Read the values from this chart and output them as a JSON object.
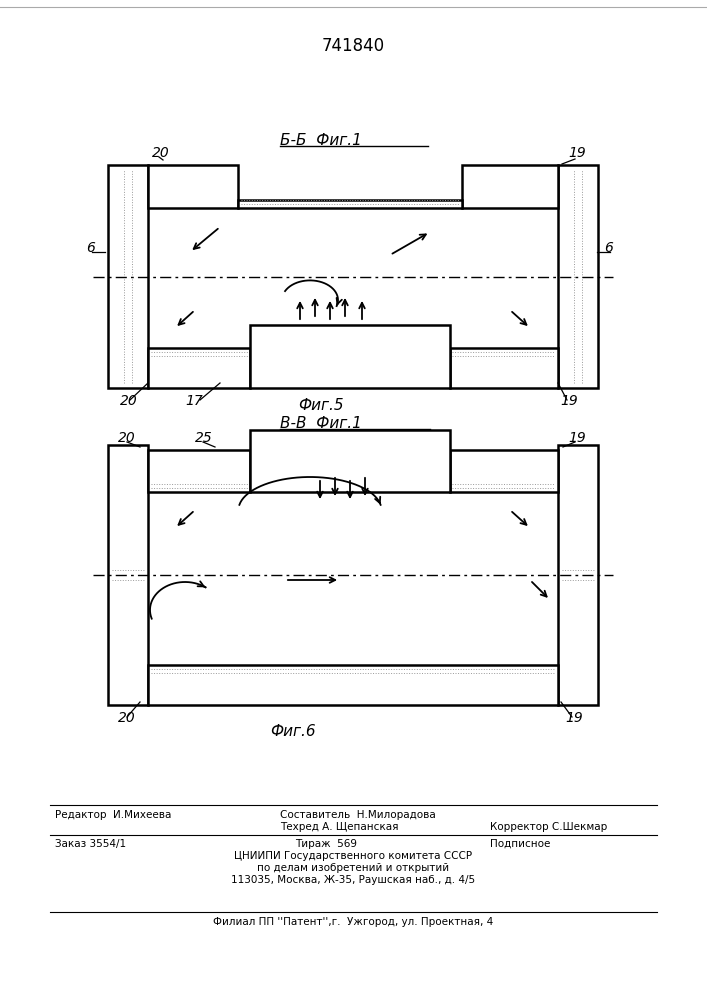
{
  "patent_number": "741840",
  "fig5_label": "Б-Б  Фиг.1",
  "fig5_caption": "Фиг.5",
  "fig6_label": "В-В  Фиг.1",
  "fig6_caption": "Фиг.6",
  "label_6": "6",
  "label_17": "17",
  "label_19": "19",
  "label_20": "20",
  "label_25": "25",
  "footer_editor": "Редактор  И.Михеева",
  "footer_comp": "Составитель  Н.Милорадова",
  "footer_tech": "Техред А. Щепанская",
  "footer_corr": "Корректор С.Шекмар",
  "footer_order": "Заказ 3554/1",
  "footer_circ": "Тираж  569",
  "footer_sign": "Подписное",
  "footer_org": "ЦНИИПИ Государственного комитета СССР",
  "footer_dept": "по делам изобретений и открытий",
  "footer_addr": "113035, Москва, Ж-35, Раушская наб., д. 4/5",
  "footer_branch": "Филиал ПП ''Патент'',г.  Ужгород, ул. Проектная, 4",
  "bg_color": "#ffffff",
  "line_color": "#000000"
}
